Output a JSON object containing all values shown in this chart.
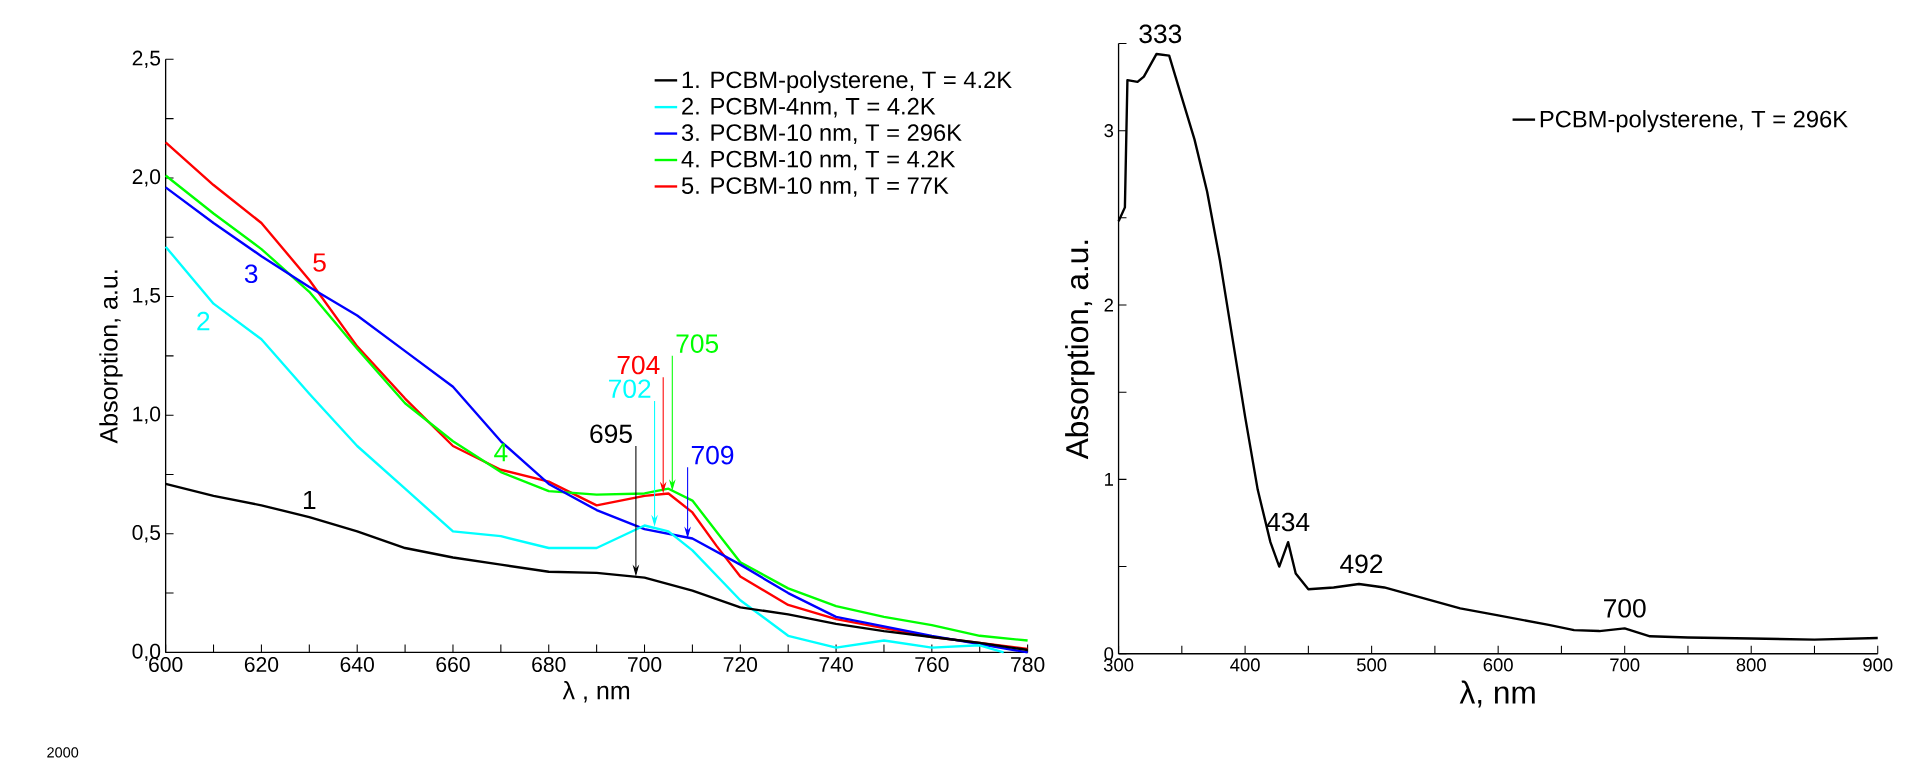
{
  "chart_data": [
    {
      "type": "line",
      "xlabel": "λ , nm",
      "ylabel": "Absorption, a.u.",
      "xlim": [
        600,
        780
      ],
      "ylim": [
        0,
        2.5
      ],
      "xticks": [
        600,
        {
          "value": 610,
          "label": null
        },
        620,
        {
          "value": 630,
          "label": null
        },
        640,
        {
          "value": 650,
          "label": null
        },
        660,
        {
          "value": 670,
          "label": null
        },
        680,
        {
          "value": 690,
          "label": null
        },
        700,
        {
          "value": 710,
          "label": null
        },
        720,
        {
          "value": 730,
          "label": null
        },
        740,
        {
          "value": 750,
          "label": null
        },
        760,
        {
          "value": 770,
          "label": null
        },
        780
      ],
      "yticks": [
        {
          "value": 0,
          "label": "0,0"
        },
        {
          "value": 0.25,
          "label": null
        },
        {
          "value": 0.5,
          "label": "0,5"
        },
        {
          "value": 0.75,
          "label": null
        },
        {
          "value": 1.0,
          "label": "1,0"
        },
        {
          "value": 1.25,
          "label": null
        },
        {
          "value": 1.5,
          "label": "1,5"
        },
        {
          "value": 1.75,
          "label": null
        },
        {
          "value": 2.0,
          "label": "2,0"
        },
        {
          "value": 2.25,
          "label": null
        },
        {
          "value": 2.5,
          "label": "2,5"
        }
      ],
      "legend": "top right",
      "series": [
        {
          "name": "1. PCBM-polysterene, T = 4.2K",
          "color": "#000000",
          "x": [
            600,
            610,
            620,
            630,
            640,
            650,
            660,
            670,
            680,
            690,
            700,
            710,
            720,
            730,
            740,
            750,
            760,
            770,
            780
          ],
          "values": [
            0.71,
            0.66,
            0.62,
            0.57,
            0.51,
            0.44,
            0.4,
            0.37,
            0.34,
            0.335,
            0.315,
            0.26,
            0.19,
            0.16,
            0.12,
            0.09,
            0.065,
            0.04,
            0.01
          ]
        },
        {
          "name": "2. PCBM-4nm, T = 4.2K",
          "color": "#00ffff",
          "x": [
            600,
            610,
            620,
            630,
            640,
            650,
            660,
            670,
            680,
            690,
            700,
            705,
            710,
            720,
            730,
            740,
            750,
            760,
            770,
            775
          ],
          "values": [
            1.71,
            1.47,
            1.32,
            1.09,
            0.87,
            0.69,
            0.51,
            0.49,
            0.44,
            0.44,
            0.535,
            0.51,
            0.43,
            0.22,
            0.07,
            0.02,
            0.05,
            0.02,
            0.03,
            0.0
          ]
        },
        {
          "name": "3. PCBM-10 nm, T = 296K",
          "color": "#0000ff",
          "x": [
            600,
            610,
            620,
            630,
            640,
            650,
            660,
            670,
            680,
            690,
            700,
            710,
            720,
            730,
            740,
            760,
            780
          ],
          "values": [
            1.96,
            1.81,
            1.67,
            1.54,
            1.42,
            1.27,
            1.12,
            0.89,
            0.71,
            0.6,
            0.52,
            0.48,
            0.37,
            0.25,
            0.15,
            0.07,
            0.0
          ]
        },
        {
          "name": "4. PCBM-10 nm, T = 4.2K",
          "color": "#00ff00",
          "x": [
            600,
            610,
            620,
            630,
            640,
            650,
            660,
            670,
            680,
            690,
            700,
            705,
            710,
            715,
            720,
            730,
            740,
            750,
            760,
            770,
            780
          ],
          "values": [
            2.01,
            1.85,
            1.7,
            1.52,
            1.28,
            1.05,
            0.89,
            0.76,
            0.68,
            0.665,
            0.67,
            0.69,
            0.64,
            0.51,
            0.38,
            0.27,
            0.195,
            0.15,
            0.115,
            0.07,
            0.05
          ]
        },
        {
          "name": "5. PCBM-10 nm, T = 77K",
          "color": "#ff0000",
          "x": [
            600,
            610,
            620,
            630,
            640,
            650,
            660,
            670,
            680,
            690,
            700,
            705,
            710,
            715,
            720,
            730,
            740,
            760,
            780
          ],
          "values": [
            2.15,
            1.97,
            1.81,
            1.57,
            1.29,
            1.07,
            0.87,
            0.77,
            0.72,
            0.62,
            0.66,
            0.67,
            0.59,
            0.45,
            0.32,
            0.2,
            0.14,
            0.065,
            0.015
          ]
        }
      ],
      "annotations": [
        "1",
        "2",
        "3",
        "4",
        "5",
        {
          "text": "695",
          "x": 698.2,
          "y": 0.32
        },
        {
          "text": "702",
          "x": 702.1,
          "y": 0.53
        },
        {
          "text": "704",
          "x": 703.9,
          "y": 0.67
        },
        {
          "text": "705",
          "x": 705.8,
          "y": 0.68
        },
        {
          "text": "709",
          "x": 709.0,
          "y": 0.48
        },
        "2000"
      ]
    },
    {
      "type": "line",
      "xlabel": "λ, nm",
      "ylabel": "Absorption, a.u.",
      "xlim": [
        300,
        900
      ],
      "ylim": [
        0,
        3.5
      ],
      "xticks": [
        300,
        {
          "value": 350,
          "label": null
        },
        400,
        {
          "value": 450,
          "label": null
        },
        500,
        {
          "value": 550,
          "label": null
        },
        600,
        {
          "value": 650,
          "label": null
        },
        700,
        {
          "value": 750,
          "label": null
        },
        800,
        {
          "value": 850,
          "label": null
        },
        900
      ],
      "yticks": [
        0,
        {
          "value": 0.5,
          "label": null
        },
        1,
        {
          "value": 1.5,
          "label": null
        },
        2,
        {
          "value": 2.5,
          "label": null
        },
        3,
        {
          "value": 3.5,
          "label": null
        }
      ],
      "legend": "top right",
      "series": [
        {
          "name": "PCBM-polysterene, T = 296K",
          "color": "#000000",
          "x": [
            300,
            305,
            307,
            315,
            320,
            330,
            340,
            345,
            350,
            360,
            370,
            380,
            390,
            400,
            410,
            420,
            427,
            434,
            440,
            450,
            470,
            490,
            510,
            540,
            570,
            600,
            640,
            660,
            680,
            700,
            720,
            750,
            800,
            850,
            900
          ],
          "values": [
            2.48,
            2.56,
            3.29,
            3.28,
            3.31,
            3.44,
            3.43,
            3.31,
            3.19,
            2.95,
            2.65,
            2.26,
            1.81,
            1.36,
            0.94,
            0.64,
            0.5,
            0.64,
            0.46,
            0.37,
            0.38,
            0.4,
            0.38,
            0.32,
            0.26,
            0.22,
            0.165,
            0.135,
            0.13,
            0.145,
            0.1,
            0.093,
            0.087,
            0.081,
            0.09
          ]
        }
      ],
      "annotations": [
        {
          "text": "333",
          "x": 333,
          "y": 3.44
        },
        {
          "text": "434",
          "x": 434,
          "y": 0.64
        },
        {
          "text": "492",
          "x": 492,
          "y": 0.4
        },
        {
          "text": "700",
          "x": 700,
          "y": 0.145
        }
      ]
    }
  ]
}
